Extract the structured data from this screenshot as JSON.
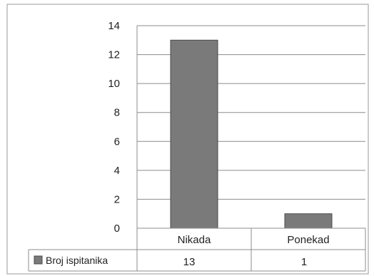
{
  "chart_data": {
    "type": "bar",
    "categories": [
      "Nikada",
      "Ponekad"
    ],
    "series": [
      {
        "name": "Broj ispitanika",
        "values": [
          13,
          1
        ],
        "color": "#7a7a7a"
      }
    ],
    "data_table": {
      "row_label": "Broj ispitanika",
      "cells": [
        "13",
        "1"
      ]
    },
    "ylim": [
      0,
      14
    ],
    "yticks": [
      0,
      2,
      4,
      6,
      8,
      10,
      12,
      14
    ],
    "grid": true,
    "legend_placement": "data-table",
    "colors": {
      "bar": "#7a7a7a",
      "bar_edge": "#4a4a4a",
      "grid": "#8c8c8c",
      "frame": "#9a9a9a"
    }
  }
}
